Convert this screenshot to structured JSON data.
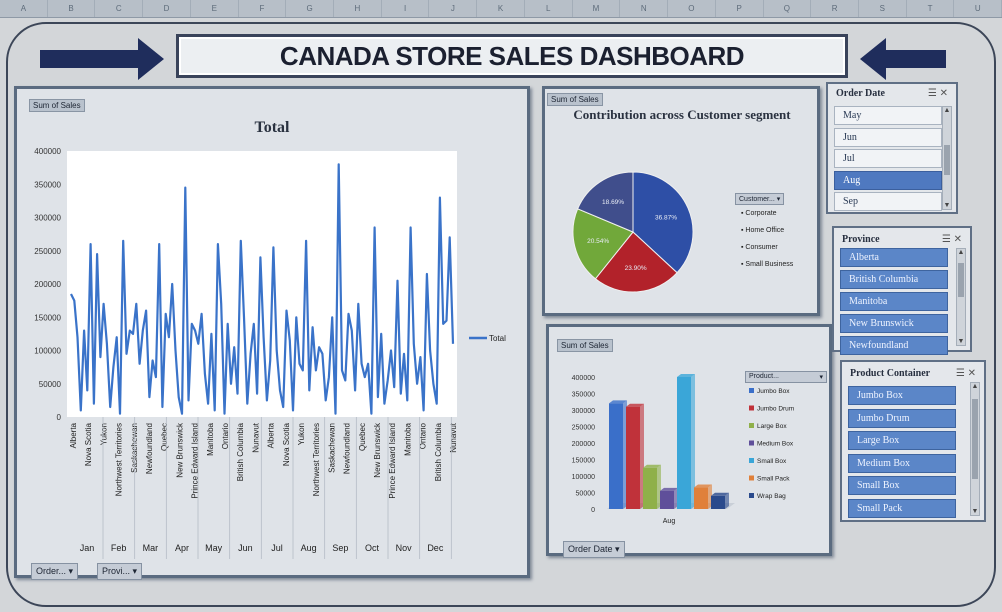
{
  "column_headers": [
    "A",
    "B",
    "C",
    "D",
    "E",
    "F",
    "G",
    "H",
    "I",
    "J",
    "K",
    "L",
    "M",
    "N",
    "O",
    "P",
    "Q",
    "R",
    "S",
    "T",
    "U"
  ],
  "dashboard_title": "CANADA STORE SALES DASHBOARD",
  "line_panel": {
    "tag": "Sum of Sales",
    "legend_label": "Total",
    "filter_order": "Order...",
    "filter_province": "Provi..."
  },
  "pie_panel": {
    "tag": "Sum of Sales",
    "legend_button": "Customer..."
  },
  "bar_panel": {
    "tag": "Sum of Sales",
    "legend_button": "Product...",
    "filter_order_date": "Order Date"
  },
  "slicer_order_date": {
    "title": "Order Date",
    "items": [
      {
        "label": "May",
        "selected": false
      },
      {
        "label": "Jun",
        "selected": false
      },
      {
        "label": "Jul",
        "selected": false
      },
      {
        "label": "Aug",
        "selected": true
      },
      {
        "label": "Sep",
        "selected": false
      }
    ]
  },
  "slicer_province": {
    "title": "Province",
    "items": [
      "Alberta",
      "British Columbia",
      "Manitoba",
      "New Brunswick",
      "Newfoundland"
    ]
  },
  "slicer_product_container": {
    "title": "Product Container",
    "items": [
      "Jumbo Box",
      "Jumbo Drum",
      "Large Box",
      "Medium Box",
      "Small Box",
      "Small Pack"
    ]
  },
  "colors": {
    "line": "#3a73c9",
    "corporate": "#2e4fa6",
    "home_office": "#b2222a",
    "consumer": "#71a83a",
    "small_business": "#404e8c",
    "title_border": "#39435a",
    "arrow": "#1f2d5c"
  },
  "chart_data": [
    {
      "type": "line",
      "title": "Total",
      "series": [
        {
          "name": "Total",
          "values": [
            185,
            175,
            120,
            10,
            130,
            40,
            260,
            20,
            245,
            90,
            170,
            110,
            15,
            75,
            120,
            5,
            265,
            95,
            130,
            125,
            170,
            80,
            130,
            160,
            30,
            85,
            60,
            260,
            15,
            155,
            120,
            200,
            100,
            30,
            5,
            345,
            25,
            140,
            130,
            110,
            155,
            65,
            20,
            125,
            10,
            260,
            170,
            5,
            140,
            50,
            105,
            35,
            265,
            150,
            20,
            95,
            140,
            35,
            240,
            120,
            25,
            85,
            255,
            100,
            40,
            15,
            160,
            115,
            10,
            150,
            80,
            70,
            265,
            40,
            135,
            70,
            105,
            95,
            25,
            60,
            150,
            5,
            380,
            70,
            55,
            155,
            130,
            40,
            170,
            80,
            60,
            80,
            5,
            285,
            30,
            125,
            20,
            55,
            100,
            45,
            205,
            35,
            95,
            25,
            285,
            110,
            50,
            90,
            10,
            215,
            100,
            50,
            20,
            330,
            140,
            145,
            270,
            110
          ]
        }
      ],
      "x_tick_labels": [
        "Alberta",
        "Nova Scotia",
        "Yukon",
        "Northwest Territories",
        "Saskachewan",
        "Newfoundland",
        "Quebec",
        "New Brunswick",
        "Prince Edward Island",
        "Manitoba",
        "Ontario",
        "British Columbia",
        "Nunavut",
        "Alberta",
        "Nova Scotia",
        "Yukon",
        "Northwest Territories",
        "Saskachewan",
        "Newfoundland",
        "Quebec",
        "New Brunswick",
        "Prince Edward Island",
        "Manitoba",
        "Ontario",
        "British Columbia",
        "Nunavut"
      ],
      "x_group_labels": [
        "Jan",
        "Feb",
        "Mar",
        "Apr",
        "May",
        "Jun",
        "Jul",
        "Aug",
        "Sep",
        "Oct",
        "Nov",
        "Dec"
      ],
      "y_ticks": [
        0,
        50000,
        100000,
        150000,
        200000,
        250000,
        300000,
        350000,
        400000
      ],
      "ylim": [
        0,
        400000
      ],
      "legend": "right"
    },
    {
      "type": "pie",
      "title": "Contribution across Customer segment",
      "labels": [
        "Corporate",
        "Home Office",
        "Consumer",
        "Small Business"
      ],
      "values": [
        36.87,
        23.9,
        20.54,
        18.69
      ],
      "value_labels": [
        "36.87%",
        "23.90%",
        "20.54%",
        "18.69%"
      ],
      "legend": "right"
    },
    {
      "type": "bar",
      "title": "",
      "categories": [
        "Aug"
      ],
      "series": [
        {
          "name": "Jumbo Box",
          "values": [
            320000
          ],
          "color": "#3a6fc9"
        },
        {
          "name": "Jumbo Drum",
          "values": [
            310000
          ],
          "color": "#c0323a"
        },
        {
          "name": "Large Box",
          "values": [
            125000
          ],
          "color": "#8fb04a"
        },
        {
          "name": "Medium Box",
          "values": [
            55000
          ],
          "color": "#5f4f9a"
        },
        {
          "name": "Small Box",
          "values": [
            400000
          ],
          "color": "#3aa6d8"
        },
        {
          "name": "Small Pack",
          "values": [
            65000
          ],
          "color": "#e0803a"
        },
        {
          "name": "Wrap Bag",
          "values": [
            40000
          ],
          "color": "#2a4a8c"
        }
      ],
      "y_ticks": [
        0,
        50000,
        100000,
        150000,
        200000,
        250000,
        300000,
        350000,
        400000
      ],
      "ylim": [
        0,
        400000
      ],
      "legend": "right"
    }
  ]
}
